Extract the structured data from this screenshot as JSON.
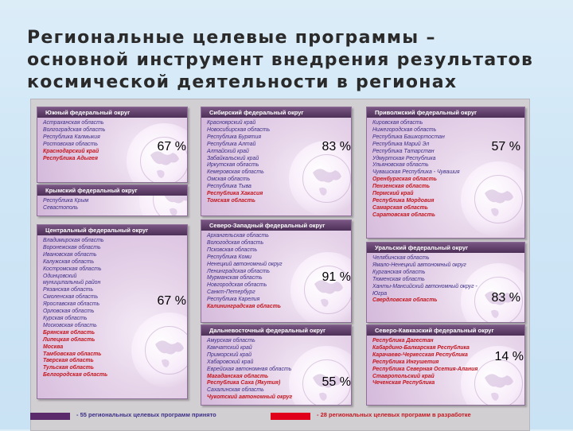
{
  "title": "Региональные целевые программы – основной инструмент внедрения результатов космической деятельности в регионах",
  "colors": {
    "in_progress": "#3c2e86",
    "in_development": "#c4171f",
    "legend_purple": "#5a2a6a",
    "legend_red": "#e0001a"
  },
  "districts": [
    {
      "id": "south",
      "name": "Южный федеральный округ",
      "percent": "67 %",
      "regions": [
        {
          "name": "Астраханская область",
          "status": "accepted"
        },
        {
          "name": "Волгоградская область",
          "status": "accepted"
        },
        {
          "name": "Республика Калмыкия",
          "status": "accepted"
        },
        {
          "name": "Ростовская область",
          "status": "accepted"
        },
        {
          "name": "Краснодарский край",
          "status": "development"
        },
        {
          "name": "Республика Адыгея",
          "status": "development"
        }
      ]
    },
    {
      "id": "crimea",
      "name": "Крымский федеральный округ",
      "percent": "",
      "regions": [
        {
          "name": "Республика Крым",
          "status": "accepted"
        },
        {
          "name": "Севастополь",
          "status": "accepted"
        }
      ]
    },
    {
      "id": "central",
      "name": "Центральный федеральный округ",
      "percent": "67 %",
      "regions": [
        {
          "name": "Владимирская область",
          "status": "accepted"
        },
        {
          "name": "Воронежская область",
          "status": "accepted"
        },
        {
          "name": "Ивановская область",
          "status": "accepted"
        },
        {
          "name": "Калужская область",
          "status": "accepted"
        },
        {
          "name": "Костромская область",
          "status": "accepted"
        },
        {
          "name": "Одинцовский",
          "status": "accepted"
        },
        {
          "name": "муниципальный район",
          "status": "accepted"
        },
        {
          "name": "Рязанская область",
          "status": "accepted"
        },
        {
          "name": "Смоленская область",
          "status": "accepted"
        },
        {
          "name": "Ярославская область",
          "status": "accepted"
        },
        {
          "name": "Орловская область",
          "status": "accepted"
        },
        {
          "name": "Курская область",
          "status": "accepted"
        },
        {
          "name": "Московская область",
          "status": "accepted"
        },
        {
          "name": "Брянская область",
          "status": "development"
        },
        {
          "name": "Липецкая область",
          "status": "development"
        },
        {
          "name": "Москва",
          "status": "development"
        },
        {
          "name": "Тамбовская область",
          "status": "development"
        },
        {
          "name": "Тверская область",
          "status": "development"
        },
        {
          "name": "Тульская область",
          "status": "development"
        },
        {
          "name": "Белгородская область",
          "status": "development"
        }
      ]
    },
    {
      "id": "siberia",
      "name": "Сибирский федеральный округ",
      "percent": "83 %",
      "regions": [
        {
          "name": "Красноярский край",
          "status": "accepted"
        },
        {
          "name": "Новосибирская область",
          "status": "accepted"
        },
        {
          "name": "Республика Бурятия",
          "status": "accepted"
        },
        {
          "name": "Республика Алтай",
          "status": "accepted"
        },
        {
          "name": "Алтайский край",
          "status": "accepted"
        },
        {
          "name": "Забайкальский край",
          "status": "accepted"
        },
        {
          "name": "Иркутская область",
          "status": "accepted"
        },
        {
          "name": "Кемеровская область",
          "status": "accepted"
        },
        {
          "name": "Омская область",
          "status": "accepted"
        },
        {
          "name": "Республика Тыва",
          "status": "accepted"
        },
        {
          "name": "Республика Хакасия",
          "status": "development"
        },
        {
          "name": "Томская область",
          "status": "development"
        }
      ]
    },
    {
      "id": "northwest",
      "name": "Северо-Западный федеральный округ",
      "percent": "91 %",
      "regions": [
        {
          "name": "Архангельская область",
          "status": "accepted"
        },
        {
          "name": "Вологодская область",
          "status": "accepted"
        },
        {
          "name": "Псковская область",
          "status": "accepted"
        },
        {
          "name": "Республика Коми",
          "status": "accepted"
        },
        {
          "name": "Ненецкий автономный округ",
          "status": "accepted"
        },
        {
          "name": "Ленинградская область",
          "status": "accepted"
        },
        {
          "name": "Мурманская область",
          "status": "accepted"
        },
        {
          "name": "Новгородская область",
          "status": "accepted"
        },
        {
          "name": "Санкт-Петербург",
          "status": "accepted"
        },
        {
          "name": "Республика Карелия",
          "status": "accepted"
        },
        {
          "name": "Калининградская область",
          "status": "development"
        }
      ]
    },
    {
      "id": "fareast",
      "name": "Дальневосточный федеральный округ",
      "percent": "55 %",
      "regions": [
        {
          "name": "Амурская область",
          "status": "accepted"
        },
        {
          "name": "Камчатский край",
          "status": "accepted"
        },
        {
          "name": "Приморский край",
          "status": "accepted"
        },
        {
          "name": "Хабаровский край",
          "status": "accepted"
        },
        {
          "name": "Еврейская автономная область",
          "status": "accepted"
        },
        {
          "name": "Магаданская область",
          "status": "development"
        },
        {
          "name": "Республика Саха (Якутия)",
          "status": "development"
        },
        {
          "name": "Сахалинская область",
          "status": "accepted"
        },
        {
          "name": "Чукотский автономный округ",
          "status": "development"
        }
      ]
    },
    {
      "id": "volga",
      "name": "Приволжский федеральный округ",
      "percent": "57 %",
      "regions": [
        {
          "name": "Кировская область",
          "status": "accepted"
        },
        {
          "name": "Нижегородская область",
          "status": "accepted"
        },
        {
          "name": "Республика Башкортостан",
          "status": "accepted"
        },
        {
          "name": "Республика Марий Эл",
          "status": "accepted"
        },
        {
          "name": "Республика Татарстан",
          "status": "accepted"
        },
        {
          "name": "Удмуртская Республика",
          "status": "accepted"
        },
        {
          "name": "Ульяновская область",
          "status": "accepted"
        },
        {
          "name": "Чувашская Республика - Чувашия",
          "status": "accepted"
        },
        {
          "name": "Оренбургская область",
          "status": "development"
        },
        {
          "name": "Пензенская область",
          "status": "development"
        },
        {
          "name": "Пермский край",
          "status": "development"
        },
        {
          "name": "Республика Мордовия",
          "status": "development"
        },
        {
          "name": "Самарская область",
          "status": "development"
        },
        {
          "name": "Саратовская область",
          "status": "development"
        }
      ]
    },
    {
      "id": "ural",
      "name": "Уральский федеральный округ",
      "percent": "83 %",
      "regions": [
        {
          "name": "Челябинская область",
          "status": "accepted"
        },
        {
          "name": "Ямало-Ненецкий автономный округ",
          "status": "accepted"
        },
        {
          "name": "Курганская область",
          "status": "accepted"
        },
        {
          "name": "Тюменская область",
          "status": "accepted"
        },
        {
          "name": "Ханты-Мансийский автономный округ -",
          "status": "accepted"
        },
        {
          "name": "Югра",
          "status": "accepted"
        },
        {
          "name": "Свердловская область",
          "status": "development"
        }
      ]
    },
    {
      "id": "caucasus",
      "name": "Северо-Кавказский федеральный округ",
      "percent": "14 %",
      "regions": [
        {
          "name": "Республика Дагестан",
          "status": "development"
        },
        {
          "name": "Кабардино-Балкарская Республика",
          "status": "development"
        },
        {
          "name": "Карачаево-Черкесская Республика",
          "status": "development"
        },
        {
          "name": "Республика Ингушетия",
          "status": "development"
        },
        {
          "name": "Республика Северная Осетия-Алания",
          "status": "development"
        },
        {
          "name": "Ставропольский край",
          "status": "development"
        },
        {
          "name": "Чеченская Республика",
          "status": "development"
        }
      ]
    }
  ],
  "legend": {
    "accepted": "- 55 региональных целевых программ принято",
    "development": "- 28 региональных целевых программ в разработке"
  }
}
